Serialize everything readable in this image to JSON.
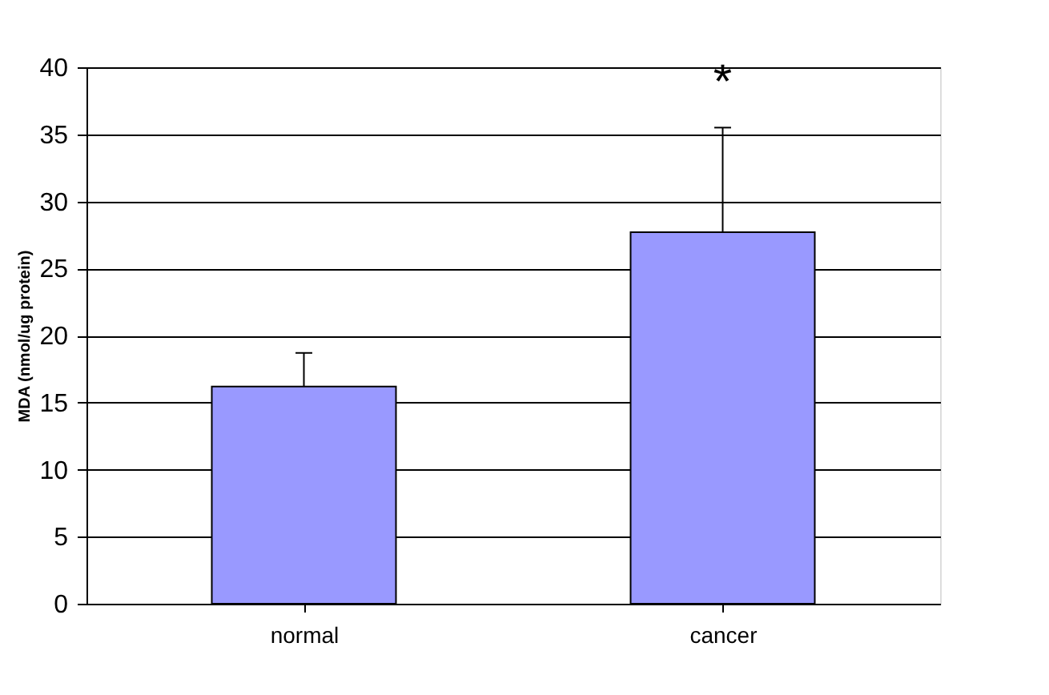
{
  "chart_data": {
    "type": "bar",
    "ylabel": "MDA (nmol/ug protein)",
    "categories": [
      "normal",
      "cancer"
    ],
    "values": [
      16.2,
      27.7
    ],
    "color": "#9999ff",
    "errors": [
      [
        16.2,
        18.7
      ],
      [
        27.7,
        35.5
      ]
    ],
    "annotations": [
      "*"
    ],
    "ylim": [
      0,
      40
    ],
    "yticks": [
      0,
      5,
      10,
      15,
      20,
      25,
      30,
      35,
      40
    ],
    "grid": "y"
  }
}
